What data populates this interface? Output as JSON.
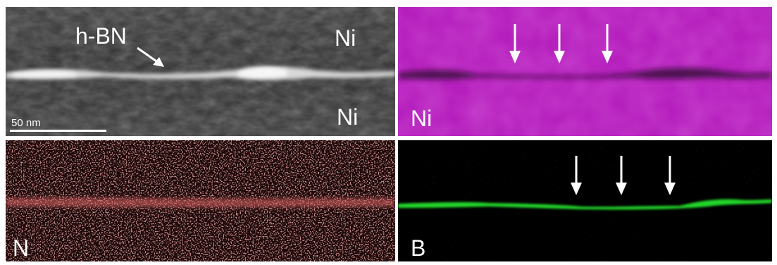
{
  "panels": {
    "haadf": {
      "labels": {
        "material": "h-BN",
        "top": "Ni",
        "bottom": "Ni"
      },
      "scale_bar": {
        "text": "50 nm"
      }
    },
    "ni_map": {
      "label": "Ni",
      "color": "#c026c9"
    },
    "n_map": {
      "label": "N",
      "color": "#e06666"
    },
    "b_map": {
      "label": "B",
      "color": "#22d62a"
    }
  },
  "icons": {
    "annotation_arrow": "arrow-icon",
    "marker_arrow": "down-arrow-icon"
  }
}
